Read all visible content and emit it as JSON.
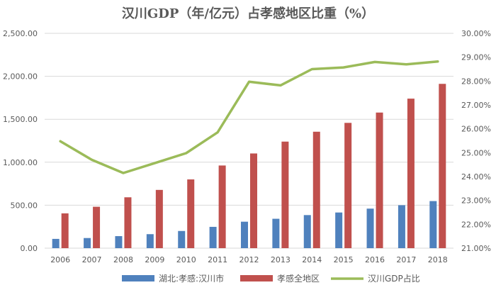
{
  "chart_data": {
    "type": "bar+line",
    "title": "汉川GDP（年/亿元）占孝感地区比重（%）",
    "categories": [
      "2006",
      "2007",
      "2008",
      "2009",
      "2010",
      "2011",
      "2012",
      "2013",
      "2014",
      "2015",
      "2016",
      "2017",
      "2018"
    ],
    "series": [
      {
        "name": "湖北:孝感:汉川市",
        "kind": "bar",
        "axis": "left",
        "color": "#4f81bd",
        "values": [
          108,
          118,
          140,
          163,
          200,
          248,
          308,
          342,
          385,
          415,
          460,
          500,
          548
        ]
      },
      {
        "name": "孝感全地区",
        "kind": "bar",
        "axis": "left",
        "color": "#c0504d",
        "values": [
          405,
          482,
          592,
          678,
          800,
          962,
          1102,
          1240,
          1355,
          1458,
          1578,
          1740,
          1912
        ]
      },
      {
        "name": "汉川GDP占比",
        "kind": "line",
        "axis": "right",
        "color": "#9bbb59",
        "values": [
          25.48,
          24.7,
          24.15,
          24.56,
          24.98,
          25.85,
          27.97,
          27.82,
          28.5,
          28.57,
          28.8,
          28.7,
          28.82
        ]
      }
    ],
    "y_left": {
      "min": 0,
      "max": 2500,
      "step": 500,
      "tick_labels": [
        "0.00",
        "500.00",
        "1,000.00",
        "1,500.00",
        "2,000.00",
        "2,500.00"
      ]
    },
    "y_right": {
      "min": 21,
      "max": 30,
      "step": 1,
      "tick_labels": [
        "21.00%",
        "22.00%",
        "23.00%",
        "24.00%",
        "25.00%",
        "26.00%",
        "27.00%",
        "28.00%",
        "29.00%",
        "30.00%"
      ]
    },
    "legend": [
      "湖北:孝感:汉川市",
      "孝感全地区",
      "汉川GDP占比"
    ],
    "legend_position": "bottom"
  }
}
